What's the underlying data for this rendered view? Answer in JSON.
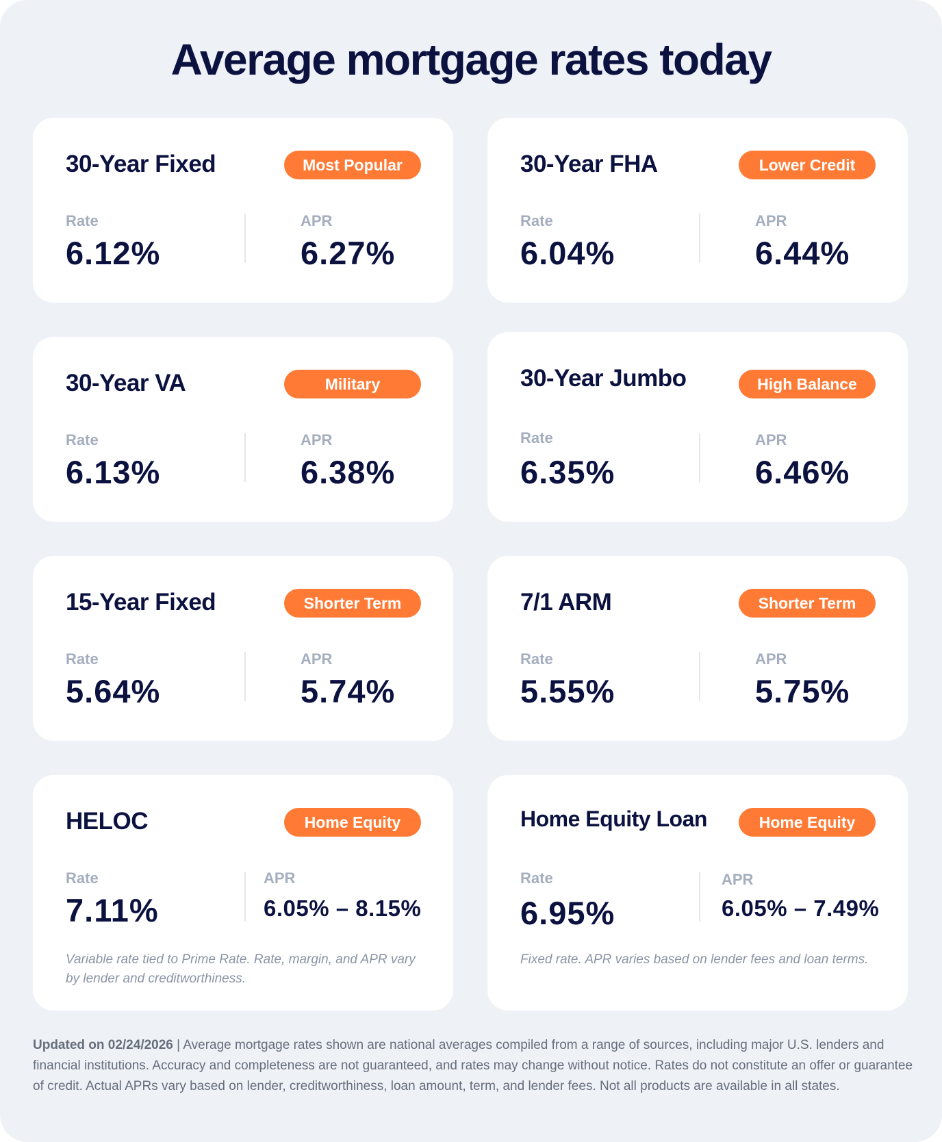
{
  "title": "Average mortgage rates today",
  "labels": {
    "rate": "Rate",
    "apr": "APR"
  },
  "cards": [
    {
      "name": "30-Year Fixed",
      "badge": "Most Popular",
      "rate": "6.12%",
      "apr": "6.27%"
    },
    {
      "name": "30-Year FHA",
      "badge": "Lower Credit",
      "rate": "6.04%",
      "apr": "6.44%"
    },
    {
      "name": "30-Year VA",
      "badge": "Military",
      "rate": "6.13%",
      "apr": "6.38%"
    },
    {
      "name": "30-Year Jumbo",
      "badge": "High Balance",
      "rate": "6.35%",
      "apr": "6.46%"
    },
    {
      "name": "15-Year Fixed",
      "badge": "Shorter Term",
      "rate": "5.64%",
      "apr": "5.74%"
    },
    {
      "name": "7/1 ARM",
      "badge": "Shorter Term",
      "rate": "5.55%",
      "apr": "5.75%"
    },
    {
      "name": "HELOC",
      "badge": "Home Equity",
      "rate": "7.11%",
      "apr": "6.05% – 8.15%",
      "note": "Variable rate tied to Prime Rate. Rate, margin, and APR vary by lender and creditworthiness."
    },
    {
      "name": "Home Equity Loan",
      "badge": "Home Equity",
      "rate": "6.95%",
      "apr": "6.05% – 7.49%",
      "note": "Fixed rate. APR varies based on lender fees and loan terms."
    }
  ],
  "footer": {
    "updated": "Updated on 02/24/2026",
    "text": " | Average mortgage rates shown are national averages compiled from a range of sources, including major U.S. lenders and financial institutions. Accuracy and completeness are not guaranteed, and rates may change without notice. Rates do not constitute an offer or guarantee of credit. Actual APRs vary based on lender, creditworthiness, loan amount, term, and lender fees. Not all products are available in all states."
  },
  "colors": {
    "accent": "#ff7a35",
    "navy": "#0c1240",
    "background": "#eef1f6",
    "label": "#a4aebf"
  }
}
